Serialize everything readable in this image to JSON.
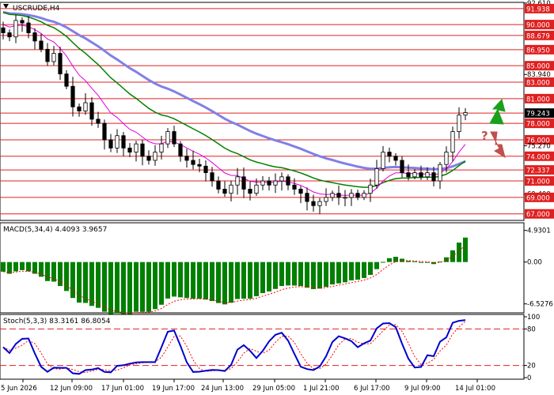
{
  "chart_data": [
    {
      "type": "candlestick",
      "title": "USCRUDE,H4",
      "symbol": "USCRUDE",
      "timeframe": "H4",
      "ylim": [
        66.3,
        92.6
      ],
      "price_ticks": [
        "92.610",
        "91.938",
        "90.000",
        "88.679",
        "86.950",
        "85.000",
        "83.940",
        "83.000",
        "81.000",
        "79.243",
        "78.000",
        "76.000",
        "75.270",
        "74.000",
        "72.337",
        "71.000",
        "69.400",
        "69.000",
        "67.000"
      ],
      "levels": [
        {
          "value": 91.938,
          "label": "91.938"
        },
        {
          "value": 90.0,
          "label": "90.000"
        },
        {
          "value": 88.679,
          "label": "88.679"
        },
        {
          "value": 86.95,
          "label": "86.950"
        },
        {
          "value": 85.0,
          "label": "85.000"
        },
        {
          "value": 83.0,
          "label": "83.000"
        },
        {
          "value": 81.0,
          "label": "81.000"
        },
        {
          "value": 79.243,
          "label": "79.243"
        },
        {
          "value": 78.0,
          "label": "78.000"
        },
        {
          "value": 76.0,
          "label": "76.000"
        },
        {
          "value": 74.0,
          "label": "74.000"
        },
        {
          "value": 72.337,
          "label": "72.337"
        },
        {
          "value": 71.0,
          "label": "71.000"
        },
        {
          "value": 69.0,
          "label": "69.000"
        },
        {
          "value": 67.0,
          "label": "67.000"
        }
      ],
      "last_price": 79.243,
      "x_labels": [
        "5 Jun 2026",
        "12 Jun 09:00",
        "17 Jun 01:00",
        "19 Jun 17:00",
        "24 Jun 13:00",
        "29 Jun 05:00",
        "1 Jul 21:00",
        "6 Jul 17:00",
        "9 Jul 09:00",
        "14 Jul 01:00"
      ],
      "close_series": [
        89.0,
        88.5,
        90.5,
        90.2,
        89.0,
        88.0,
        87.0,
        85.5,
        86.5,
        84.0,
        82.5,
        80.0,
        79.5,
        80.5,
        78.5,
        78.0,
        76.0,
        75.0,
        76.5,
        75.0,
        74.5,
        75.5,
        74.0,
        73.5,
        74.5,
        75.5,
        77.0,
        75.5,
        74.0,
        73.5,
        73.0,
        72.8,
        72.0,
        71.0,
        70.0,
        69.5,
        70.5,
        71.5,
        70.0,
        69.5,
        70.5,
        71.0,
        70.5,
        71.0,
        71.5,
        70.5,
        70.0,
        69.5,
        68.5,
        68.0,
        68.5,
        69.0,
        69.5,
        69.0,
        69.0,
        69.5,
        69.0,
        69.5,
        70.5,
        72.5,
        74.5,
        74.0,
        73.5,
        72.0,
        71.5,
        72.0,
        71.5,
        72.0,
        71.0,
        73.0,
        74.5,
        77.0,
        79.0,
        79.3
      ],
      "moving_averages": [
        {
          "color": "#8080e6",
          "width": 3
        },
        {
          "color": "#008000",
          "width": 1.5
        },
        {
          "color": "#e000e0",
          "width": 1
        }
      ],
      "annotations": [
        {
          "text": "?",
          "color": "#c0504d"
        },
        {
          "name": "up-arrow",
          "color": "#1aa01a"
        },
        {
          "name": "down-arrow",
          "color": "#c0504d"
        }
      ]
    },
    {
      "type": "bar",
      "title": "MACD(5,34,4) 4.4093 3.9657",
      "indicator": "MACD",
      "params": [
        5,
        34,
        4
      ],
      "value": 4.4093,
      "signal_value": 3.9657,
      "ylim": [
        -7.8,
        6.0
      ],
      "ticks": [
        "4.9301",
        "0.00",
        "-6.5276"
      ],
      "bar_color": "#008000",
      "signal_color": "#ff0000"
    },
    {
      "type": "line",
      "title": "Stoch(5,3,3) 83.3161 86.8054",
      "indicator": "Stoch",
      "params": [
        5,
        3,
        3
      ],
      "k_value": 83.3161,
      "d_value": 86.8054,
      "ylim": [
        0,
        100
      ],
      "ticks": [
        "100",
        "80",
        "20",
        "0"
      ],
      "levels": [
        80,
        20
      ],
      "k_color": "#0000cd",
      "d_color": "#ff0000"
    }
  ]
}
